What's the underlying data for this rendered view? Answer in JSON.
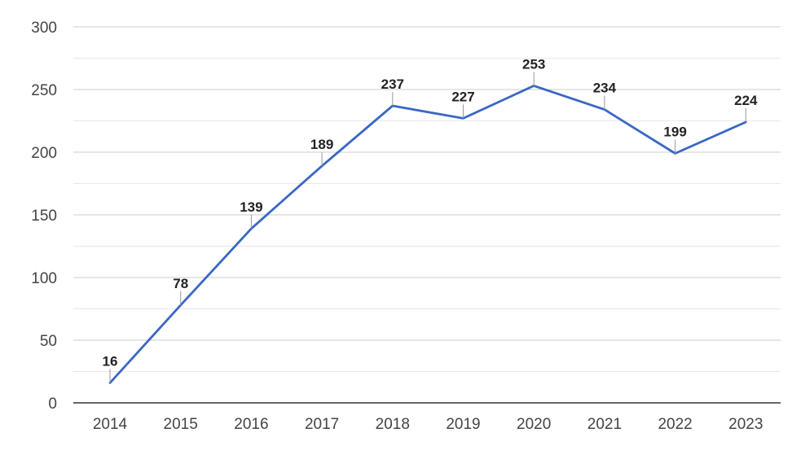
{
  "chart_data": {
    "type": "line",
    "title": "",
    "xlabel": "",
    "ylabel": "",
    "x": [
      "2014",
      "2015",
      "2016",
      "2017",
      "2018",
      "2019",
      "2020",
      "2021",
      "2022",
      "2023"
    ],
    "series": [
      {
        "values": [
          16,
          78,
          139,
          189,
          237,
          227,
          253,
          234,
          199,
          224
        ],
        "color": "#3a67c4"
      }
    ],
    "ylim": [
      0,
      300
    ],
    "yticks": [
      0,
      50,
      100,
      150,
      200,
      250,
      300
    ],
    "minor_gridlines": true,
    "data_labels": true,
    "legend": "none",
    "colors": {
      "major_grid": "#cccccc",
      "minor_grid": "#e8e8e8",
      "axis": "#333333",
      "leader": "#999999"
    }
  }
}
